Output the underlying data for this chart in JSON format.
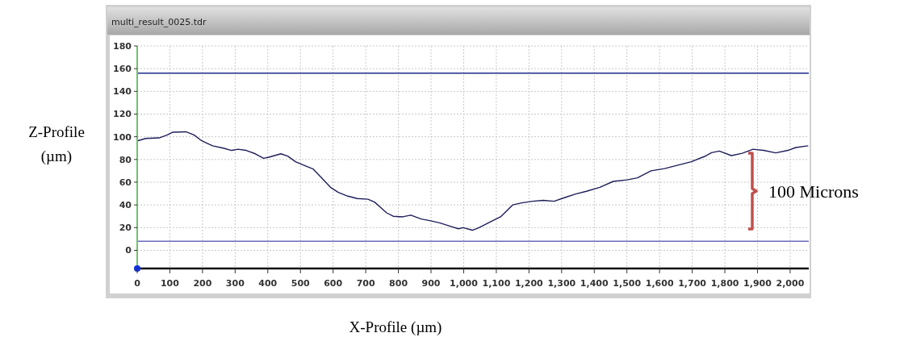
{
  "chart_data": {
    "type": "line",
    "title": "multi_result_0025.tdr",
    "xlabel": "X-Profile (µm)",
    "ylabel": "Z-Profile (µm)",
    "x": [
      0,
      26,
      67,
      92,
      108,
      149,
      174,
      198,
      231,
      264,
      289,
      309,
      334,
      362,
      387,
      403,
      440,
      461,
      485,
      510,
      539,
      564,
      592,
      616,
      645,
      674,
      707,
      727,
      764,
      784,
      813,
      838,
      870,
      899,
      928,
      961,
      984,
      998,
      1027,
      1047,
      1088,
      1113,
      1150,
      1178,
      1211,
      1244,
      1277,
      1310,
      1343,
      1376,
      1417,
      1458,
      1500,
      1532,
      1574,
      1615,
      1656,
      1697,
      1738,
      1759,
      1783,
      1820,
      1853,
      1886,
      1919,
      1956,
      1993,
      2017,
      2054
    ],
    "series": [
      {
        "color": "#1e1e5a",
        "values": [
          96.4,
          98.5,
          99,
          101.6,
          104,
          104.4,
          101.6,
          96.4,
          92,
          90,
          88,
          89,
          88,
          85,
          81,
          82,
          85,
          83,
          78,
          75,
          71.6,
          64,
          55.5,
          51,
          47.7,
          45.6,
          45,
          42.5,
          33,
          30,
          29.5,
          31,
          27.6,
          26,
          24,
          21,
          19,
          20,
          17.7,
          20,
          26,
          29.5,
          40,
          41.8,
          43.2,
          44,
          43.2,
          46.5,
          49.6,
          52,
          55.5,
          60.7,
          62,
          63.8,
          70,
          72,
          75,
          78,
          82.7,
          86,
          87.4,
          83.4,
          85.5,
          89,
          88,
          85.8,
          88,
          90.5,
          92
        ]
      }
    ],
    "xlim": [
      0,
      2057
    ],
    "ylim": [
      -16,
      180
    ],
    "xticks": [
      0,
      100,
      200,
      300,
      400,
      500,
      600,
      700,
      800,
      900,
      {
        "value": 1000,
        "label": "1,000"
      },
      {
        "value": 1100,
        "label": "1,100"
      },
      {
        "value": 1200,
        "label": "1,200"
      },
      {
        "value": 1300,
        "label": "1,300"
      },
      {
        "value": 1400,
        "label": "1,400"
      },
      {
        "value": 1500,
        "label": "1,500"
      },
      {
        "value": 1600,
        "label": "1,600"
      },
      {
        "value": 1700,
        "label": "1,700"
      },
      {
        "value": 1800,
        "label": "1,800"
      },
      {
        "value": 1900,
        "label": "1,900"
      },
      {
        "value": 2000,
        "label": "2,000"
      }
    ],
    "yticks": [
      0,
      20,
      40,
      60,
      80,
      100,
      120,
      140,
      160,
      180
    ],
    "ref_lines": [
      {
        "axis": "y",
        "value": 156,
        "color": "#1c2a8a"
      },
      {
        "axis": "y",
        "value": 8,
        "color": "#6a6ab8"
      }
    ],
    "annotations": [
      "100 Microns"
    ],
    "grid": true,
    "marker": "none",
    "line_style": "solid"
  }
}
